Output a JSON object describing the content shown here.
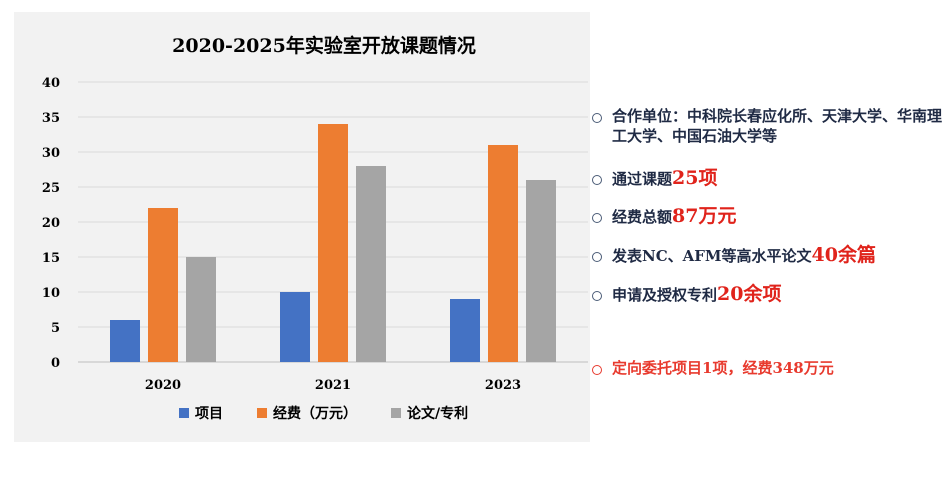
{
  "chart_data": {
    "type": "bar",
    "title": "2020-2025年实验室开放课题情况",
    "categories": [
      "2020",
      "2021",
      "2023"
    ],
    "series": [
      {
        "name": "项目",
        "values": [
          6,
          10,
          9
        ],
        "color": "#4472c4"
      },
      {
        "name": "经费（万元）",
        "values": [
          22,
          34,
          31
        ],
        "color": "#ed7d31"
      },
      {
        "name": "论文/专利",
        "values": [
          15,
          28,
          26
        ],
        "color": "#a5a5a5"
      }
    ],
    "ylim": [
      0,
      40
    ],
    "yticks": [
      0,
      5,
      10,
      15,
      20,
      25,
      30,
      35,
      40
    ],
    "grid": true,
    "legend": "bottom"
  },
  "bullets": [
    {
      "text": "合作单位：中科院长春应化所、天津大学、华南理工大学、中国石油大学等",
      "highlight": "",
      "red": false
    },
    {
      "text": "通过课题",
      "highlight": "25项",
      "red": false
    },
    {
      "text": "经费总额",
      "highlight": "87万元",
      "red": false
    },
    {
      "text": "发表NC、AFM等高水平论文",
      "highlight": "40余篇",
      "red": false
    },
    {
      "text": "申请及授权专利",
      "highlight": "20余项",
      "red": false
    },
    {
      "text": "定向委托项目1项，经费348万元",
      "highlight": "",
      "red": true
    }
  ]
}
